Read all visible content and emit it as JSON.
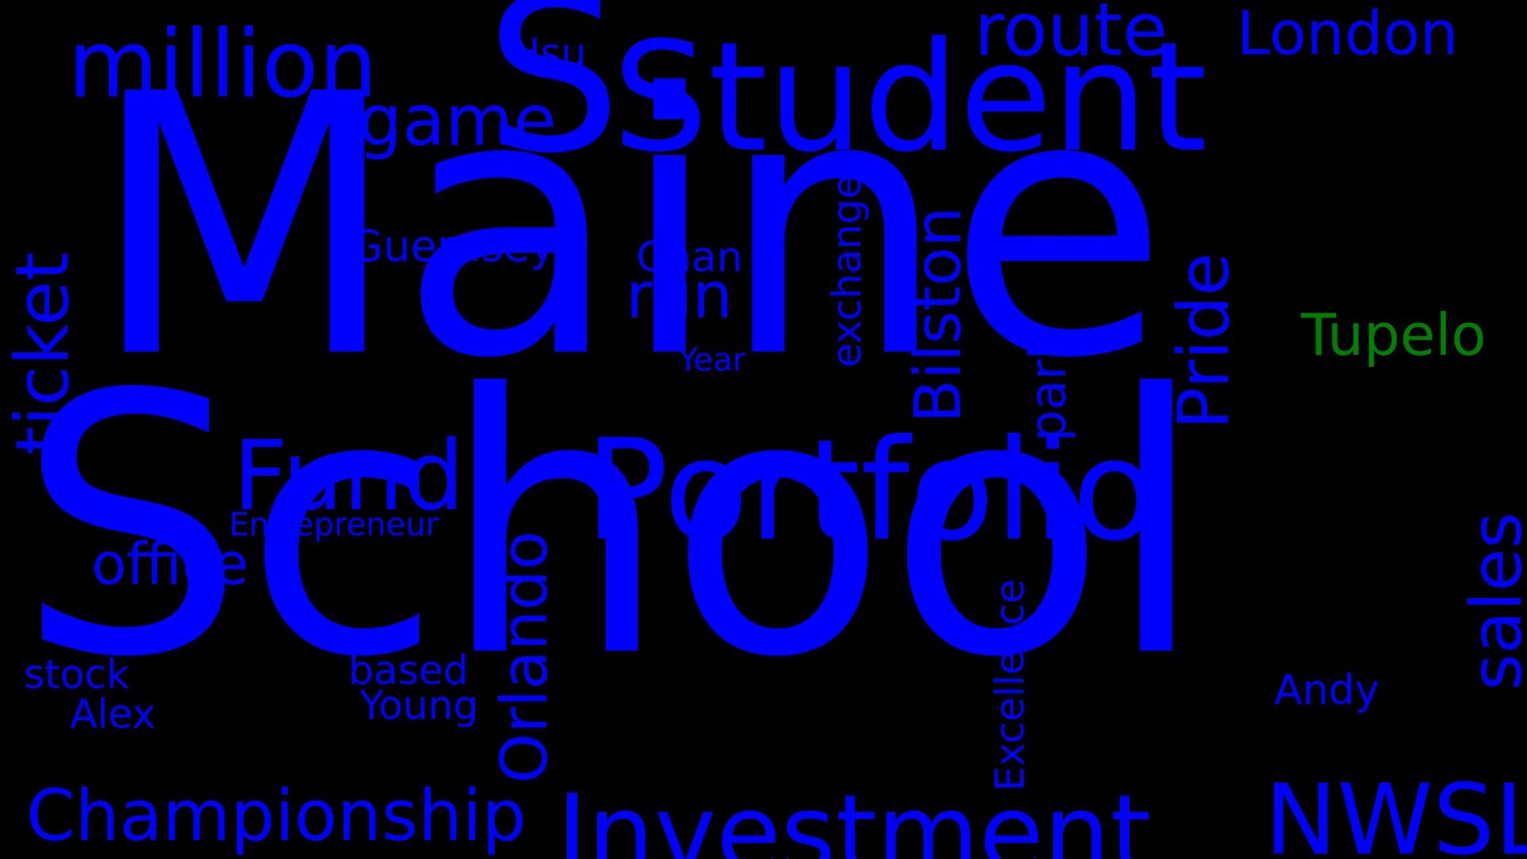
{
  "background_color": "#000000",
  "colors": {
    "primary": "#0000ff",
    "accent": "#008000"
  },
  "words": {
    "maine": "Maine",
    "school": "School",
    "s": "S",
    "student": "Student",
    "portfolio": "Portfolio",
    "investment": "Investment",
    "million": "million",
    "route": "route",
    "london": "London",
    "hsu": "Hsu",
    "game": "game",
    "ticket": "ticket",
    "guernsey": "Guernsey",
    "chan": "Chan",
    "run": "run",
    "exchange": "exchange",
    "bilston": "Bilston",
    "pride": "Pride",
    "park": "park",
    "tupelo": "Tupelo",
    "fund": "Fund",
    "year": "Year",
    "sales": "sales",
    "entrepreneur": "Entrepreneur",
    "office": "office",
    "orlando": "Orlando",
    "excellence": "Excellence",
    "stock": "stock",
    "based": "based",
    "alex": "Alex",
    "young": "Young",
    "andy": "Andy",
    "championship": "Championship",
    "nwsl": "NWSL"
  }
}
